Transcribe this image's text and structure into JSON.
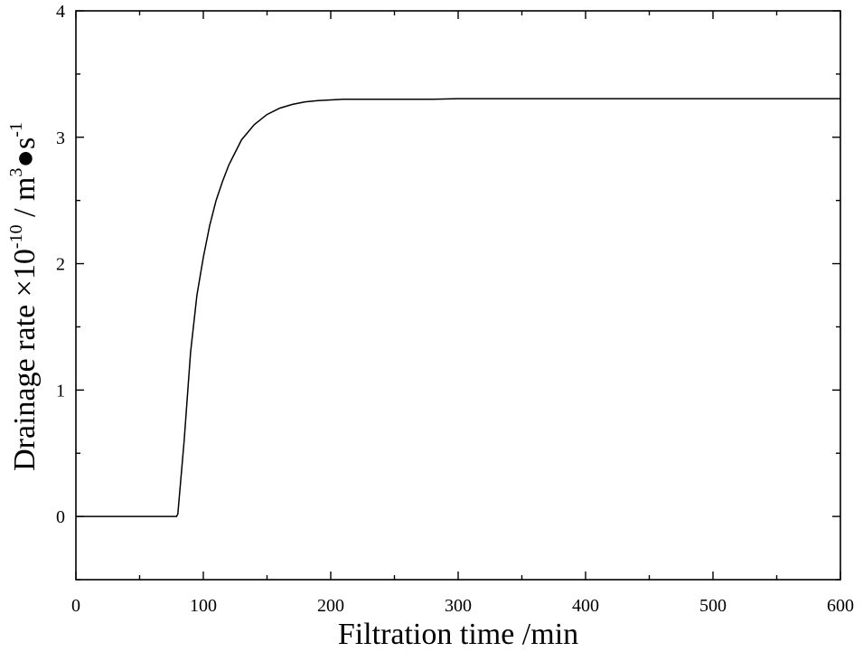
{
  "chart_data": {
    "type": "line",
    "title": "",
    "xlabel": "Filtration time /min",
    "ylabel": {
      "main": "Drainage rate ×10",
      "exp1": "-10",
      "unit": " / m",
      "exp2": "3",
      "unit2": "●s",
      "exp3": "-1"
    },
    "xlim": [
      0,
      600
    ],
    "ylim": [
      -0.5,
      4
    ],
    "x_ticks": [
      0,
      100,
      200,
      300,
      400,
      500,
      600
    ],
    "x_tick_labels": [
      "0",
      "100",
      "200",
      "300",
      "400",
      "500",
      "600"
    ],
    "y_ticks": [
      0,
      1,
      2,
      3,
      4
    ],
    "y_tick_labels": [
      "0",
      "1",
      "2",
      "3",
      "4"
    ],
    "grid": false,
    "series": [
      {
        "x": [
          0,
          20,
          40,
          60,
          79,
          80,
          85,
          90,
          95,
          100,
          105,
          110,
          115,
          120,
          130,
          140,
          150,
          160,
          170,
          180,
          190,
          200,
          210,
          220,
          230,
          240,
          260,
          280,
          300,
          350,
          400,
          450,
          500,
          550,
          600
        ],
        "y": [
          0,
          0,
          0,
          0,
          0,
          0.02,
          0.6,
          1.3,
          1.75,
          2.05,
          2.3,
          2.5,
          2.65,
          2.78,
          2.98,
          3.1,
          3.18,
          3.23,
          3.26,
          3.28,
          3.29,
          3.295,
          3.3,
          3.3,
          3.3,
          3.3,
          3.3,
          3.3,
          3.305,
          3.305,
          3.305,
          3.305,
          3.305,
          3.305,
          3.305
        ]
      }
    ]
  }
}
